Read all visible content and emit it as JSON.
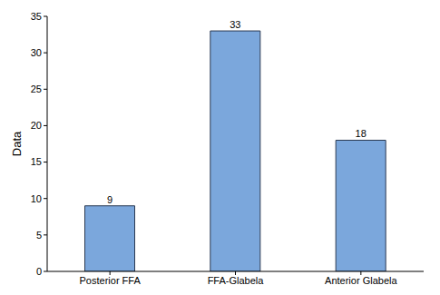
{
  "chart_data": {
    "type": "bar",
    "categories": [
      "Posterior FFA",
      "FFA-Glabela",
      "Anterior Glabela"
    ],
    "values": [
      9,
      33,
      18
    ],
    "color": "#7ba7dc",
    "ylabel": "Data",
    "ylim": [
      0,
      35
    ],
    "yticks": [
      0,
      5,
      10,
      15,
      20,
      25,
      30,
      35
    ],
    "grid": false,
    "data_labels": true
  }
}
